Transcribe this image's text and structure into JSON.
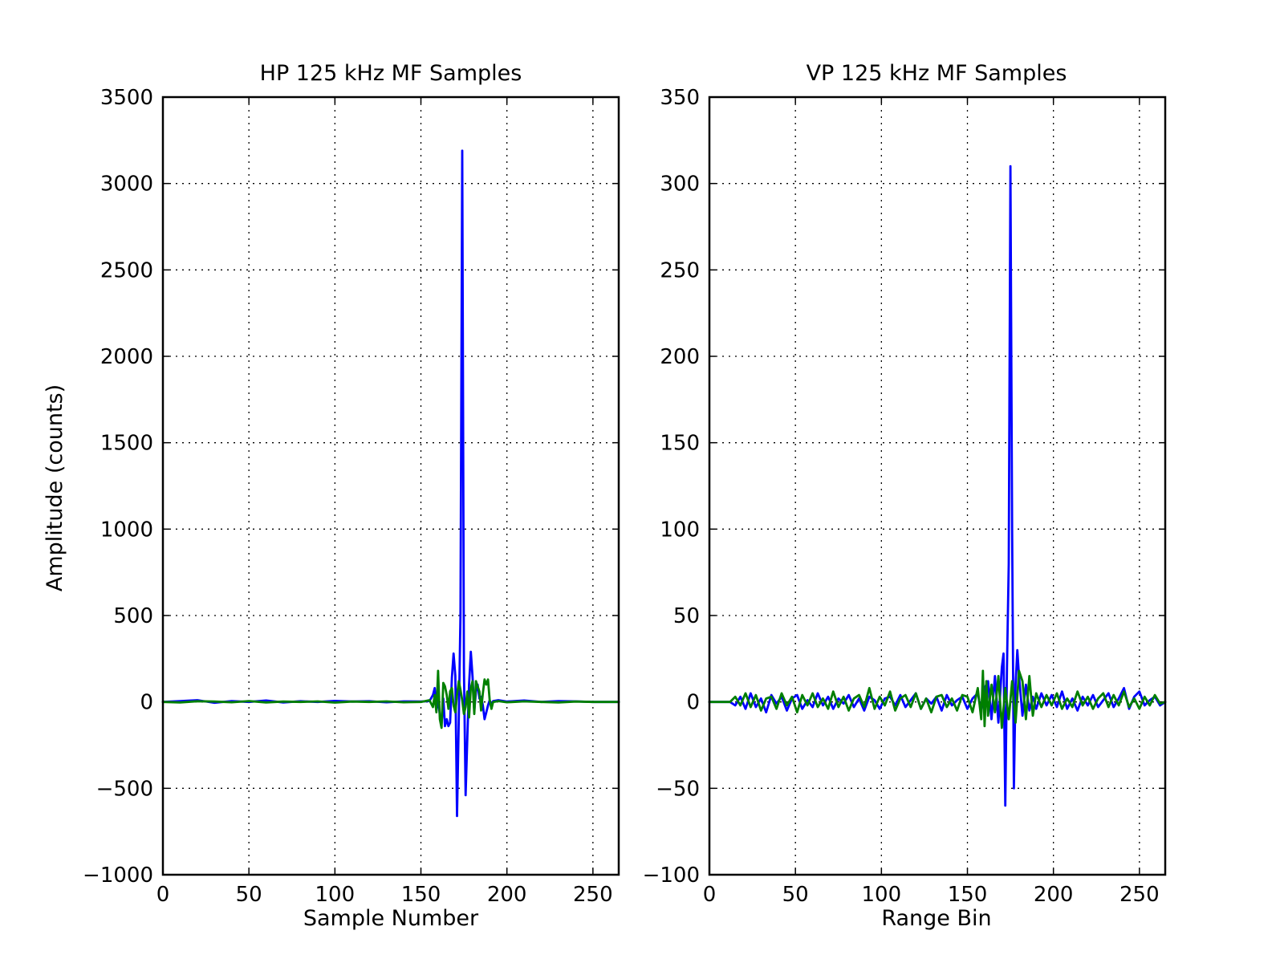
{
  "chart_data": [
    {
      "type": "line",
      "title": "HP 125 kHz MF Samples",
      "xlabel": "Sample Number",
      "ylabel": "Amplitude (counts)",
      "xlim": [
        0,
        265
      ],
      "ylim": [
        -1000,
        3500
      ],
      "xticks": [
        0,
        50,
        100,
        150,
        200,
        250
      ],
      "xtick_labels": [
        "0",
        "50",
        "100",
        "150",
        "200",
        "250"
      ],
      "yticks": [
        -1000,
        -500,
        0,
        500,
        1000,
        1500,
        2000,
        2500,
        3000,
        3500
      ],
      "ytick_labels": [
        "−1000",
        "−500",
        "0",
        "500",
        "1000",
        "1500",
        "2000",
        "2500",
        "3000",
        "3500"
      ],
      "grid": true,
      "series": [
        {
          "color": "#0000ff",
          "x": [
            0,
            10,
            20,
            30,
            40,
            50,
            60,
            70,
            80,
            90,
            100,
            110,
            120,
            130,
            140,
            150,
            155,
            157,
            158,
            159,
            160,
            161,
            162,
            163,
            164,
            165,
            166,
            167,
            168,
            169,
            170,
            171,
            172,
            173,
            174,
            175,
            176,
            177,
            178,
            179,
            180,
            181,
            182,
            183,
            184,
            185,
            186,
            187,
            188,
            189,
            190,
            191,
            192,
            195,
            200,
            210,
            220,
            230,
            240,
            250,
            265
          ],
          "y": [
            0,
            5,
            10,
            -5,
            5,
            0,
            8,
            -3,
            4,
            0,
            6,
            2,
            4,
            -2,
            3,
            2,
            5,
            40,
            80,
            -50,
            20,
            -80,
            -130,
            20,
            -140,
            -100,
            -140,
            -120,
            140,
            280,
            150,
            -660,
            -100,
            500,
            3190,
            200,
            -540,
            -200,
            100,
            290,
            150,
            -50,
            60,
            100,
            20,
            30,
            -20,
            -100,
            -60,
            -20,
            10,
            -20,
            5,
            10,
            2,
            8,
            0,
            5,
            3,
            0,
            0
          ]
        },
        {
          "color": "#007f00",
          "x": [
            0,
            10,
            20,
            30,
            40,
            50,
            60,
            70,
            80,
            90,
            100,
            110,
            120,
            130,
            140,
            150,
            155,
            157,
            158,
            159,
            160,
            161,
            162,
            163,
            164,
            165,
            166,
            167,
            168,
            169,
            170,
            171,
            172,
            173,
            174,
            175,
            176,
            177,
            178,
            179,
            180,
            181,
            182,
            183,
            184,
            185,
            186,
            187,
            188,
            189,
            190,
            191,
            192,
            195,
            200,
            210,
            220,
            230,
            240,
            250,
            265
          ],
          "y": [
            0,
            -3,
            4,
            2,
            -2,
            5,
            -3,
            2,
            0,
            3,
            -4,
            2,
            0,
            3,
            -2,
            0,
            10,
            -30,
            40,
            -60,
            180,
            -100,
            -150,
            110,
            90,
            40,
            -40,
            60,
            80,
            -20,
            -60,
            40,
            120,
            70,
            10,
            -70,
            -30,
            60,
            -90,
            80,
            120,
            -70,
            120,
            90,
            60,
            -50,
            50,
            130,
            100,
            130,
            10,
            -40,
            0,
            5,
            -2,
            3,
            0,
            -3,
            2,
            0,
            0
          ]
        }
      ]
    },
    {
      "type": "line",
      "title": "VP 125 kHz MF Samples",
      "xlabel": "Range Bin",
      "ylabel": "",
      "xlim": [
        0,
        265
      ],
      "ylim": [
        -100,
        350
      ],
      "xticks": [
        0,
        50,
        100,
        150,
        200,
        250
      ],
      "xtick_labels": [
        "0",
        "50",
        "100",
        "150",
        "200",
        "250"
      ],
      "yticks": [
        -100,
        -50,
        0,
        50,
        100,
        150,
        200,
        250,
        300,
        350
      ],
      "ytick_labels": [
        "−100",
        "−50",
        "0",
        "50",
        "100",
        "150",
        "200",
        "250",
        "300",
        "350"
      ],
      "grid": true,
      "series": [
        {
          "color": "#0000ff",
          "x": [
            0,
            12,
            15,
            18,
            21,
            24,
            27,
            30,
            33,
            36,
            39,
            42,
            45,
            48,
            51,
            54,
            57,
            60,
            63,
            66,
            69,
            72,
            75,
            78,
            81,
            84,
            87,
            90,
            93,
            96,
            99,
            102,
            105,
            108,
            111,
            114,
            117,
            120,
            123,
            126,
            129,
            132,
            135,
            138,
            141,
            144,
            147,
            150,
            153,
            156,
            158,
            160,
            162,
            164,
            166,
            168,
            170,
            171,
            172,
            173,
            174,
            175,
            176,
            177,
            178,
            179,
            180,
            182,
            184,
            186,
            188,
            190,
            193,
            196,
            199,
            202,
            205,
            208,
            211,
            214,
            217,
            220,
            223,
            226,
            229,
            232,
            235,
            238,
            241,
            244,
            247,
            250,
            253,
            256,
            259,
            262,
            265
          ],
          "y": [
            0,
            0,
            -2,
            3,
            -4,
            5,
            -3,
            2,
            -6,
            4,
            -1,
            3,
            -5,
            2,
            4,
            -4,
            1,
            -3,
            5,
            -2,
            3,
            -4,
            2,
            -1,
            4,
            -3,
            2,
            -5,
            3,
            1,
            -4,
            2,
            3,
            -2,
            4,
            -3,
            1,
            5,
            -4,
            2,
            -1,
            3,
            -5,
            4,
            -2,
            1,
            3,
            -4,
            2,
            5,
            -6,
            8,
            12,
            -10,
            15,
            -12,
            20,
            28,
            -60,
            20,
            80,
            310,
            100,
            -50,
            10,
            30,
            15,
            -8,
            10,
            -5,
            3,
            -4,
            5,
            -2,
            4,
            -3,
            6,
            -4,
            2,
            -5,
            3,
            -2,
            4,
            -3,
            1,
            5,
            -3,
            2,
            8,
            -4,
            3,
            6,
            -2,
            1,
            3,
            -2,
            0
          ]
        },
        {
          "color": "#007f00",
          "x": [
            0,
            12,
            15,
            18,
            21,
            24,
            27,
            30,
            33,
            36,
            39,
            42,
            45,
            48,
            51,
            54,
            57,
            60,
            63,
            66,
            69,
            72,
            75,
            78,
            81,
            84,
            87,
            90,
            93,
            96,
            99,
            102,
            105,
            108,
            111,
            114,
            117,
            120,
            123,
            126,
            129,
            132,
            135,
            138,
            141,
            144,
            147,
            150,
            153,
            156,
            158,
            159,
            160,
            161,
            162,
            164,
            166,
            168,
            170,
            172,
            174,
            176,
            178,
            180,
            182,
            184,
            186,
            188,
            190,
            193,
            196,
            199,
            202,
            205,
            208,
            211,
            214,
            217,
            220,
            223,
            226,
            229,
            232,
            235,
            238,
            241,
            244,
            247,
            250,
            253,
            256,
            259,
            262,
            265
          ],
          "y": [
            0,
            0,
            3,
            -2,
            5,
            -3,
            4,
            -5,
            2,
            3,
            -4,
            5,
            -2,
            3,
            -6,
            4,
            -2,
            5,
            -3,
            2,
            -4,
            6,
            -3,
            3,
            -5,
            2,
            4,
            -3,
            8,
            -4,
            3,
            -2,
            6,
            -5,
            2,
            4,
            -3,
            5,
            -4,
            2,
            -6,
            3,
            4,
            -3,
            2,
            -5,
            4,
            3,
            -6,
            8,
            -10,
            18,
            -14,
            12,
            -8,
            10,
            -6,
            15,
            -15,
            8,
            -10,
            12,
            -12,
            18,
            12,
            -10,
            15,
            -8,
            5,
            -3,
            4,
            -2,
            5,
            -4,
            2,
            -3,
            6,
            -2,
            3,
            -4,
            2,
            5,
            -3,
            4,
            -2,
            6,
            -3,
            2,
            -4,
            3,
            -2,
            4,
            -1,
            0
          ]
        }
      ]
    }
  ]
}
